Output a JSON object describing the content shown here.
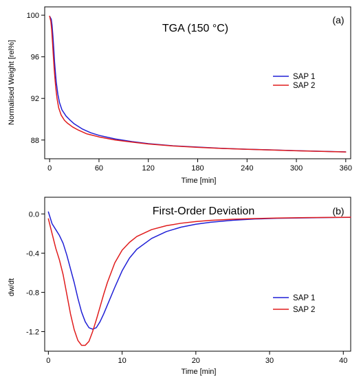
{
  "chart_data": [
    {
      "type": "line",
      "title": "TGA (150 °C)",
      "panel_label": "(a)",
      "xlabel": "Time [min]",
      "ylabel": "Normalised Weight [rel%]",
      "xlim": [
        -6,
        366
      ],
      "ylim": [
        86.2,
        100.8
      ],
      "xticks": [
        0,
        60,
        120,
        180,
        240,
        300,
        360
      ],
      "xtick_labels": [
        "0",
        "60",
        "120",
        "180",
        "240",
        "300",
        "360"
      ],
      "yticks": [
        88,
        92,
        96,
        100
      ],
      "ytick_labels": [
        "88",
        "92",
        "96",
        "100"
      ],
      "grid": false,
      "legend_position": "right",
      "series": [
        {
          "name": "SAP 1",
          "color": "#1f1fd6",
          "x": [
            0,
            2,
            3,
            4,
            5,
            6,
            7,
            8,
            10,
            12,
            15,
            20,
            25,
            30,
            40,
            50,
            60,
            80,
            100,
            120,
            150,
            180,
            210,
            240,
            270,
            300,
            330,
            360
          ],
          "y": [
            99.9,
            99.6,
            99.0,
            98.0,
            96.8,
            95.5,
            94.5,
            93.6,
            92.4,
            91.6,
            90.9,
            90.3,
            89.9,
            89.55,
            89.05,
            88.7,
            88.45,
            88.1,
            87.85,
            87.65,
            87.45,
            87.32,
            87.2,
            87.12,
            87.05,
            86.98,
            86.92,
            86.86
          ]
        },
        {
          "name": "SAP 2",
          "color": "#e01b1b",
          "x": [
            0,
            1.5,
            2.5,
            3.5,
            4.5,
            5.5,
            6.5,
            7.5,
            9,
            11,
            14,
            18,
            22,
            28,
            35,
            45,
            60,
            80,
            100,
            120,
            150,
            180,
            210,
            240,
            270,
            300,
            330,
            360
          ],
          "y": [
            99.9,
            99.4,
            98.6,
            97.4,
            96.1,
            94.9,
            93.9,
            93.0,
            92.0,
            91.1,
            90.4,
            89.9,
            89.6,
            89.25,
            88.95,
            88.6,
            88.3,
            88.0,
            87.8,
            87.62,
            87.43,
            87.3,
            87.19,
            87.11,
            87.04,
            86.97,
            86.91,
            86.85
          ]
        }
      ]
    },
    {
      "type": "line",
      "title": "First-Order Deviation",
      "panel_label": "(b)",
      "xlabel": "Time [min]",
      "ylabel": "dw/dt",
      "xlim": [
        -0.5,
        41
      ],
      "ylim": [
        -1.4,
        0.17
      ],
      "xticks": [
        0,
        10,
        20,
        30,
        40
      ],
      "xtick_labels": [
        "0",
        "10",
        "20",
        "30",
        "40"
      ],
      "yticks": [
        0.0,
        -0.4,
        -0.8,
        -1.2
      ],
      "ytick_labels": [
        "0.0",
        "-0.4",
        "-0.8",
        "-1.2"
      ],
      "grid": false,
      "legend_position": "right",
      "series": [
        {
          "name": "SAP 1",
          "color": "#1f1fd6",
          "x": [
            0,
            0.5,
            1,
            1.5,
            2,
            2.5,
            3,
            3.5,
            4,
            4.5,
            5,
            5.5,
            6,
            6.5,
            7,
            7.5,
            8,
            9,
            10,
            11,
            12,
            14,
            16,
            18,
            20,
            22,
            25,
            28,
            31,
            35,
            38,
            41
          ],
          "y": [
            0.02,
            -0.1,
            -0.16,
            -0.22,
            -0.3,
            -0.42,
            -0.56,
            -0.7,
            -0.86,
            -1.0,
            -1.1,
            -1.16,
            -1.175,
            -1.16,
            -1.1,
            -1.02,
            -0.93,
            -0.75,
            -0.58,
            -0.45,
            -0.36,
            -0.25,
            -0.18,
            -0.135,
            -0.105,
            -0.085,
            -0.065,
            -0.052,
            -0.045,
            -0.04,
            -0.037,
            -0.035
          ]
        },
        {
          "name": "SAP 2",
          "color": "#e01b1b",
          "x": [
            0,
            0.5,
            1,
            1.5,
            2,
            2.5,
            3,
            3.5,
            4,
            4.5,
            5,
            5.5,
            6,
            6.5,
            7,
            7.5,
            8,
            9,
            10,
            11,
            12,
            14,
            16,
            18,
            20,
            22,
            25,
            28,
            31,
            35,
            38,
            41
          ],
          "y": [
            -0.05,
            -0.2,
            -0.35,
            -0.47,
            -0.62,
            -0.82,
            -1.02,
            -1.18,
            -1.29,
            -1.34,
            -1.34,
            -1.3,
            -1.2,
            -1.08,
            -0.95,
            -0.82,
            -0.7,
            -0.5,
            -0.37,
            -0.29,
            -0.23,
            -0.16,
            -0.12,
            -0.095,
            -0.078,
            -0.066,
            -0.054,
            -0.047,
            -0.042,
            -0.038,
            -0.036,
            -0.034
          ]
        }
      ]
    }
  ]
}
